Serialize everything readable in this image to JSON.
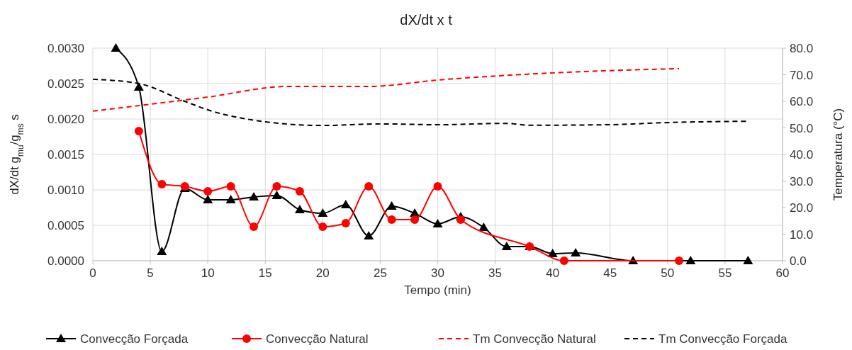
{
  "chart_data": {
    "type": "line",
    "title": "dX/dt  x  t",
    "xlabel": "Tempo (min)",
    "ylabel": "dX/dt g$_{mu}$/g$_{ms}$ s",
    "y2label": "Temperatura (°C)",
    "xlim": [
      0,
      60
    ],
    "xticks": [
      0,
      5,
      10,
      15,
      20,
      25,
      30,
      35,
      40,
      45,
      50,
      55,
      60
    ],
    "ylim": [
      0,
      0.003
    ],
    "yticks": [
      {
        "value": 0,
        "label": "0.0000"
      },
      {
        "value": 0.0005,
        "label": "0.0005"
      },
      {
        "value": 0.001,
        "label": "0.0010"
      },
      {
        "value": 0.0015,
        "label": "0.0015"
      },
      {
        "value": 0.002,
        "label": "0.0020"
      },
      {
        "value": 0.0025,
        "label": "0.0025"
      },
      {
        "value": 0.003,
        "label": "0.0030"
      }
    ],
    "y2lim": [
      0,
      80
    ],
    "y2ticks": [
      {
        "value": 0,
        "label": "0.0"
      },
      {
        "value": 10,
        "label": "10.0"
      },
      {
        "value": 20,
        "label": "20.0"
      },
      {
        "value": 30,
        "label": "30.0"
      },
      {
        "value": 40,
        "label": "40.0"
      },
      {
        "value": 50,
        "label": "50.0"
      },
      {
        "value": 60,
        "label": "60.0"
      },
      {
        "value": 70,
        "label": "70.0"
      },
      {
        "value": 80,
        "label": "80.0"
      }
    ],
    "grid": true,
    "legend": "bottom",
    "series": [
      {
        "name": "Convecção Forçada",
        "color": "#000000",
        "marker": "triangle",
        "line_style": "solid",
        "x": [
          2,
          4,
          6,
          8,
          10,
          12,
          14,
          16,
          18,
          20,
          22,
          24,
          26,
          28,
          30,
          32,
          34,
          36,
          38,
          40,
          42,
          47,
          52,
          57
        ],
        "values": [
          0.003,
          0.00245,
          0.00013,
          0.00102,
          0.00086,
          0.00086,
          0.0009,
          0.00092,
          0.00072,
          0.00067,
          0.00079,
          0.00035,
          0.00077,
          0.00067,
          0.00052,
          0.00062,
          0.00047,
          0.0002,
          0.0002,
          0.0001,
          0.00011,
          0,
          0,
          0
        ]
      },
      {
        "name": "Convecção Natural",
        "color": "#ff0000",
        "marker": "circle",
        "line_style": "solid",
        "x": [
          4,
          6,
          8,
          10,
          12,
          14,
          16,
          18,
          20,
          22,
          24,
          26,
          28,
          30,
          32,
          38,
          41,
          51
        ],
        "values": [
          0.00183,
          0.00108,
          0.00105,
          0.00098,
          0.00105,
          0.00048,
          0.00105,
          0.00098,
          0.00048,
          0.00053,
          0.00105,
          0.00058,
          0.00058,
          0.00105,
          0.00058,
          0.0002,
          0,
          0
        ]
      },
      {
        "name": "Tm Convecção Natural",
        "color": "#ff0000",
        "marker": "none",
        "line_style": "dashed",
        "axis": "y2",
        "x": [
          0,
          10,
          17,
          24,
          30,
          40,
          51
        ],
        "values": [
          56.3,
          61.6,
          65.6,
          65.6,
          68,
          70.7,
          72.3
        ]
      },
      {
        "name": "Tm Convecção Forçada",
        "color": "#000000",
        "marker": "none",
        "line_style": "dashed",
        "axis": "y2",
        "x": [
          0,
          4,
          8,
          10,
          15,
          20,
          25,
          30,
          36,
          38,
          45,
          50,
          57
        ],
        "values": [
          68.3,
          66.7,
          60,
          56.8,
          52.3,
          50.9,
          51.5,
          51.2,
          51.7,
          51,
          51.2,
          52,
          52.5
        ]
      }
    ]
  }
}
